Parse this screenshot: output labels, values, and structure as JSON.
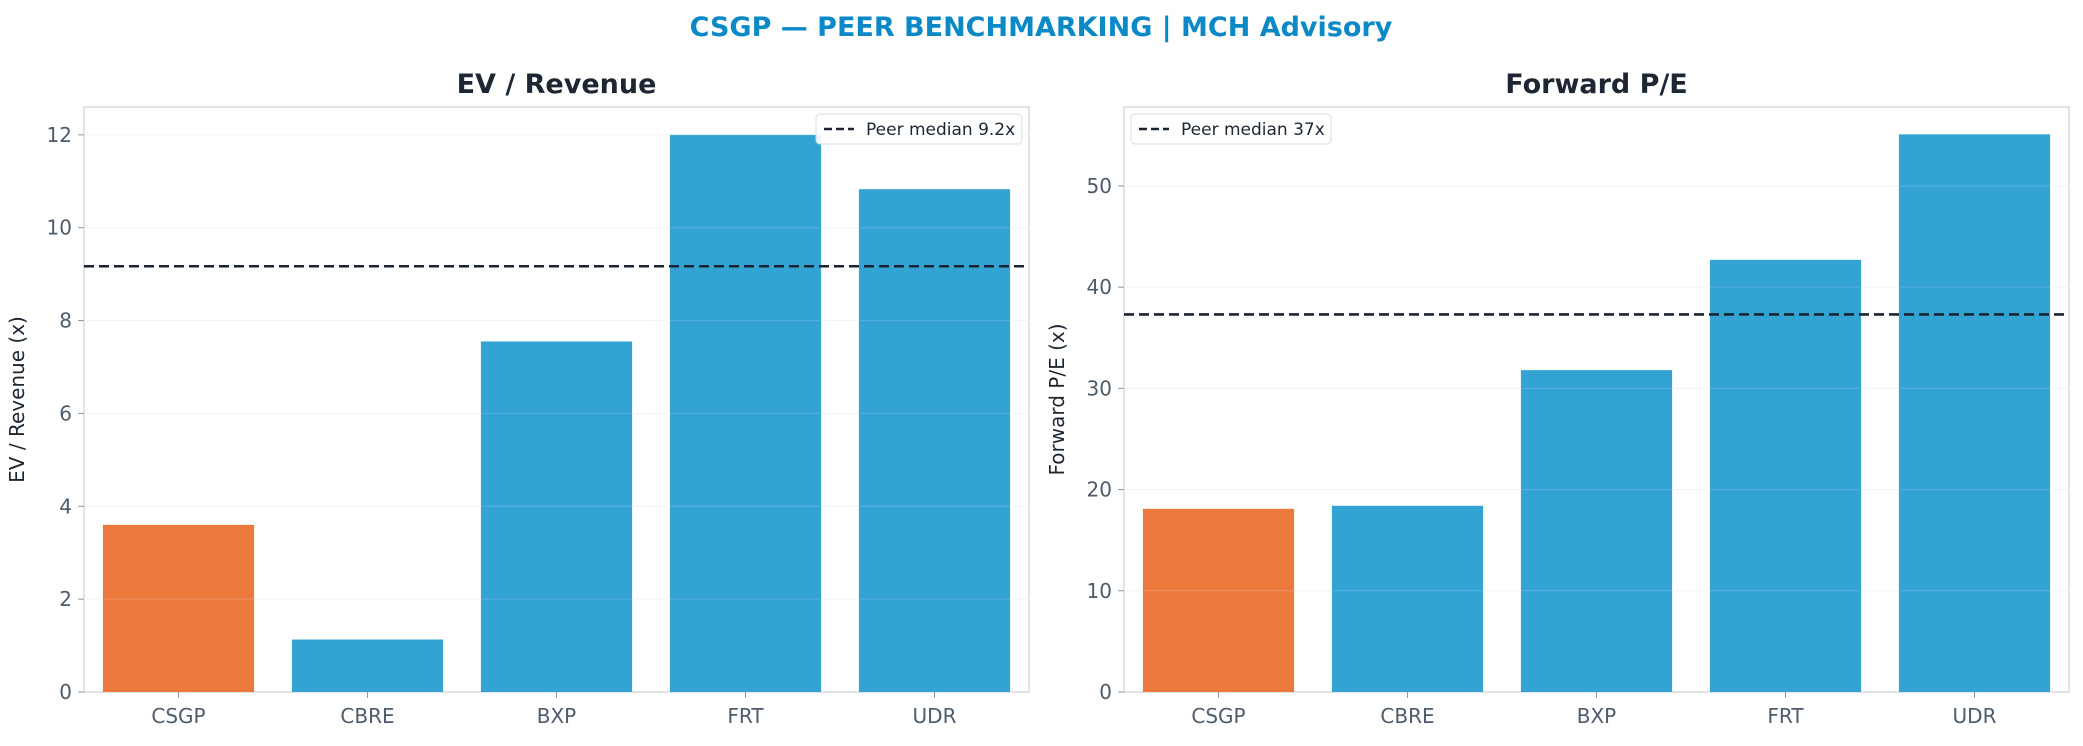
{
  "suptitle": "CSGP — PEER BENCHMARKING | MCH Advisory",
  "colors": {
    "title": "#0a89c6",
    "highlight_bar": "#ec7a3d",
    "peer_bar": "#33a3d4",
    "median_line": "#1a2332",
    "frame": "#cfd6dd",
    "grid": "#eef1f4"
  },
  "chart_data": [
    {
      "type": "bar",
      "title": "EV / Revenue",
      "xlabel": "",
      "ylabel": "EV / Revenue (x)",
      "categories": [
        "CSGP",
        "CBRE",
        "BXP",
        "FRT",
        "UDR"
      ],
      "values": [
        3.6,
        1.13,
        7.55,
        12.0,
        10.83
      ],
      "highlight": "CSGP",
      "ylim": [
        0,
        12.6
      ],
      "yticks": [
        0,
        2,
        4,
        6,
        8,
        10,
        12
      ],
      "reference_line": {
        "value": 9.17,
        "style": "dashed",
        "label": "Peer median 9.2x"
      },
      "legend_position": "top-right",
      "grid": true
    },
    {
      "type": "bar",
      "title": "Forward P/E",
      "xlabel": "",
      "ylabel": "Forward P/E (x)",
      "categories": [
        "CSGP",
        "CBRE",
        "BXP",
        "FRT",
        "UDR"
      ],
      "values": [
        18.1,
        18.4,
        31.8,
        42.7,
        55.1
      ],
      "highlight": "CSGP",
      "ylim": [
        0,
        57.8
      ],
      "yticks": [
        0,
        10,
        20,
        30,
        40,
        50
      ],
      "reference_line": {
        "value": 37.3,
        "style": "dashed",
        "label": "Peer median 37x"
      },
      "legend_position": "top-left",
      "grid": true
    }
  ]
}
